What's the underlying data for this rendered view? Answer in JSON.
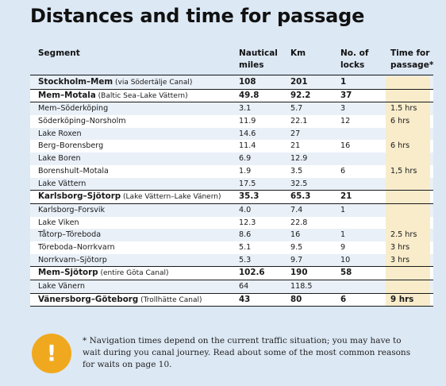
{
  "title": "Distances and time for passage",
  "table": {
    "headers": {
      "segment": "Segment",
      "nautical": "Nautical miles",
      "km": "Km",
      "locks": "No. of locks",
      "time": "Time for passage*"
    },
    "rows": [
      {
        "segment": "Stockholm–Mem",
        "note": " (via Södertälje Canal)",
        "nm": "108",
        "km": "201",
        "locks": "1",
        "time": "",
        "bold": true
      },
      {
        "segment": "Mem–Motala",
        "note": " (Baltic Sea–Lake Vättern)",
        "nm": "49.8",
        "km": "92.2",
        "locks": "37",
        "time": "",
        "bold": true
      },
      {
        "segment": "Mem–Söderköping",
        "note": "",
        "nm": "3.1",
        "km": "5.7",
        "locks": "3",
        "time": "1.5 hrs",
        "bold": false
      },
      {
        "segment": "Söderköping–Norsholm",
        "note": "",
        "nm": "11.9",
        "km": "22.1",
        "locks": "12",
        "time": "6 hrs",
        "bold": false
      },
      {
        "segment": "Lake Roxen",
        "note": "",
        "nm": "14.6",
        "km": "27",
        "locks": "",
        "time": "",
        "bold": false
      },
      {
        "segment": "Berg–Borensberg",
        "note": "",
        "nm": "11.4",
        "km": "21",
        "locks": "16",
        "time": "6 hrs",
        "bold": false
      },
      {
        "segment": "Lake Boren",
        "note": "",
        "nm": "6.9",
        "km": "12.9",
        "locks": "",
        "time": "",
        "bold": false
      },
      {
        "segment": "Borenshult–Motala",
        "note": "",
        "nm": "1.9",
        "km": "3.5",
        "locks": "6",
        "time": "1,5 hrs",
        "bold": false
      },
      {
        "segment": "Lake Vättern",
        "note": "",
        "nm": "17.5",
        "km": "32.5",
        "locks": "",
        "time": "",
        "bold": false
      },
      {
        "segment": "Karlsborg–Sjötorp",
        "note": " (Lake Vättern–Lake Vänern)",
        "nm": "35.3",
        "km": "65.3",
        "locks": "21",
        "time": "",
        "bold": true
      },
      {
        "segment": "Karlsborg–Forsvik",
        "note": "",
        "nm": "4.0",
        "km": "7.4",
        "locks": "1",
        "time": "",
        "bold": false
      },
      {
        "segment": "Lake Viken",
        "note": "",
        "nm": "12.3",
        "km": "22.8",
        "locks": "",
        "time": "",
        "bold": false
      },
      {
        "segment": "Tåtorp–Töreboda",
        "note": "",
        "nm": "8.6",
        "km": "16",
        "locks": "1",
        "time": "2.5 hrs",
        "bold": false
      },
      {
        "segment": "Töreboda–Norrkvarn",
        "note": "",
        "nm": "5.1",
        "km": "9.5",
        "locks": "9",
        "time": "3 hrs",
        "bold": false
      },
      {
        "segment": "Norrkvarn–Sjötorp",
        "note": "",
        "nm": "5.3",
        "km": "9.7",
        "locks": "10",
        "time": "3 hrs",
        "bold": false
      },
      {
        "segment": "Mem–Sjötorp",
        "note": " (entire Göta Canal)",
        "nm": "102.6",
        "km": "190",
        "locks": "58",
        "time": "",
        "bold": true
      },
      {
        "segment": "Lake Vänern",
        "note": "",
        "nm": "64",
        "km": "118.5",
        "locks": "",
        "time": "",
        "bold": false
      },
      {
        "segment": "Vänersborg–Göteborg",
        "note": " (Trollhätte Canal)",
        "nm": "43",
        "km": "80",
        "locks": "6",
        "time": "9 hrs",
        "bold": true
      }
    ]
  },
  "warning_icon": {
    "symbol": "!",
    "color": "#f0a91e"
  },
  "footnote": "* Navigation times depend on the current traffic situation; you may have to wait during you canal journey. Read about some of the most common reasons for waits on page 10."
}
